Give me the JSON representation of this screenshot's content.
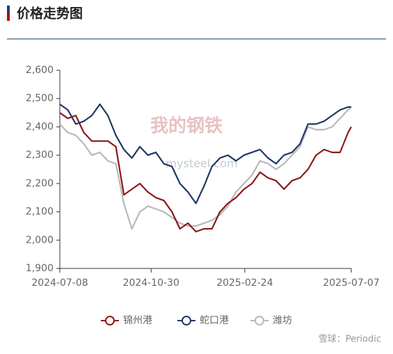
{
  "header": {
    "title": "价格走势图"
  },
  "watermark": {
    "logo": "我的钢铁",
    "site": "mysteel.com",
    "credit": "雪球：Periodic"
  },
  "chart_data": {
    "type": "line",
    "x": [
      "2024-07-08",
      "2024-07-18",
      "2024-07-28",
      "2024-08-07",
      "2024-08-17",
      "2024-08-27",
      "2024-09-06",
      "2024-09-16",
      "2024-09-26",
      "2024-10-06",
      "2024-10-16",
      "2024-10-26",
      "2024-11-05",
      "2024-11-15",
      "2024-11-25",
      "2024-12-05",
      "2024-12-15",
      "2024-12-25",
      "2025-01-04",
      "2025-01-14",
      "2025-01-24",
      "2025-02-03",
      "2025-02-13",
      "2025-02-23",
      "2025-03-05",
      "2025-03-15",
      "2025-03-25",
      "2025-04-04",
      "2025-04-14",
      "2025-04-24",
      "2025-05-04",
      "2025-05-14",
      "2025-05-24",
      "2025-06-03",
      "2025-06-13",
      "2025-06-23",
      "2025-07-03",
      "2025-07-07"
    ],
    "series": [
      {
        "name": "锦州港",
        "color": "#8b1a1a",
        "values": [
          2450,
          2430,
          2440,
          2380,
          2350,
          2350,
          2350,
          2330,
          2160,
          2180,
          2200,
          2170,
          2150,
          2140,
          2100,
          2040,
          2060,
          2030,
          2040,
          2040,
          2100,
          2130,
          2150,
          2180,
          2200,
          2240,
          2220,
          2210,
          2180,
          2210,
          2220,
          2250,
          2300,
          2320,
          2310,
          2310,
          2380,
          2400
        ]
      },
      {
        "name": "蛇口港",
        "color": "#1f3864",
        "values": [
          2480,
          2460,
          2410,
          2420,
          2440,
          2480,
          2440,
          2370,
          2320,
          2290,
          2330,
          2300,
          2310,
          2270,
          2260,
          2200,
          2170,
          2130,
          2190,
          2260,
          2290,
          2300,
          2280,
          2300,
          2310,
          2320,
          2290,
          2270,
          2300,
          2310,
          2340,
          2410,
          2410,
          2420,
          2440,
          2460,
          2470,
          2470
        ]
      },
      {
        "name": "潍坊",
        "color": "#b8b8b8",
        "values": [
          2410,
          2380,
          2370,
          2340,
          2300,
          2310,
          2280,
          2270,
          2130,
          2040,
          2100,
          2120,
          2110,
          2100,
          2080,
          2060,
          2050,
          2050,
          2060,
          2070,
          2090,
          2120,
          2170,
          2200,
          2230,
          2280,
          2270,
          2250,
          2270,
          2300,
          2330,
          2400,
          2390,
          2390,
          2400,
          2430,
          2460,
          2470
        ]
      }
    ],
    "xlim": [
      "2024-07-08",
      "2025-07-07"
    ],
    "xticks": [
      "2024-07-08",
      "2024-10-30",
      "2025-02-24",
      "2025-07-07"
    ],
    "ylim": [
      1900,
      2600
    ],
    "yticks": [
      {
        "value": 1900,
        "label": "1,900"
      },
      {
        "value": 2000,
        "label": "2,000"
      },
      {
        "value": 2100,
        "label": "2,100"
      },
      {
        "value": 2200,
        "label": "2,200"
      },
      {
        "value": 2300,
        "label": "2,300"
      },
      {
        "value": 2400,
        "label": "2,400"
      },
      {
        "value": 2500,
        "label": "2,500"
      },
      {
        "value": 2600,
        "label": "2,600"
      }
    ],
    "legend": "bottom"
  }
}
